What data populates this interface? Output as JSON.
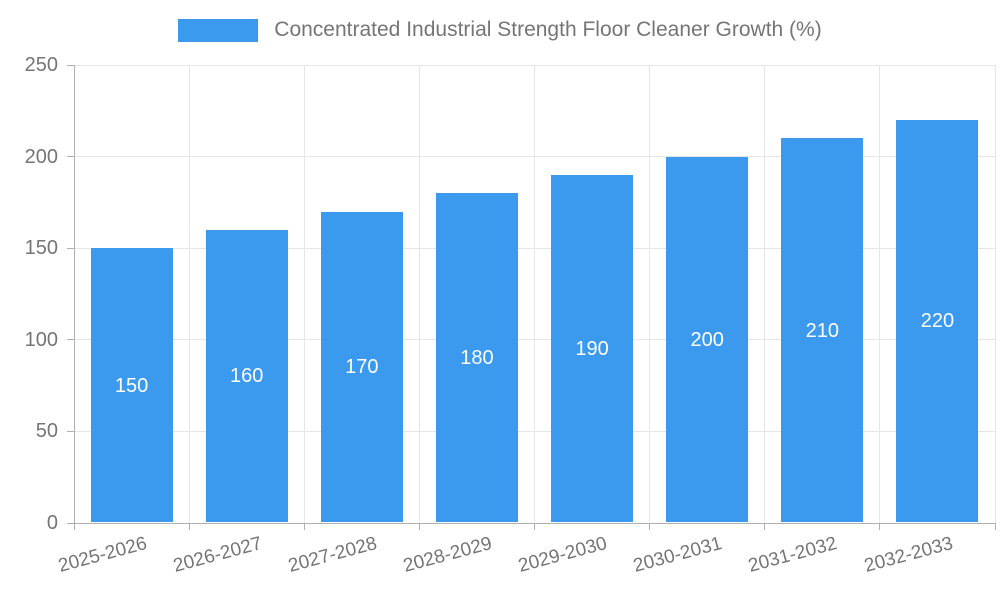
{
  "chart_data": {
    "type": "bar",
    "title": "Concentrated Industrial Strength Floor Cleaner Growth (%)",
    "legend_position": "top",
    "categories": [
      "2025-2026",
      "2026-2027",
      "2027-2028",
      "2028-2029",
      "2029-2030",
      "2030-2031",
      "2031-2032",
      "2032-2033"
    ],
    "values": [
      150,
      160,
      170,
      180,
      190,
      200,
      210,
      220
    ],
    "xlabel": "",
    "ylabel": "",
    "ylim": [
      0,
      250
    ],
    "y_ticks": [
      0,
      50,
      100,
      150,
      200,
      250
    ],
    "grid": "on",
    "data_labels": "inside-center",
    "colors": {
      "bar": "#3b99ee",
      "bar_label_text": "#ffffff",
      "axis_text": "#757575",
      "axis_line": "#b0b0b0",
      "grid_line": "#e6e6e6",
      "background": "#ffffff"
    }
  }
}
